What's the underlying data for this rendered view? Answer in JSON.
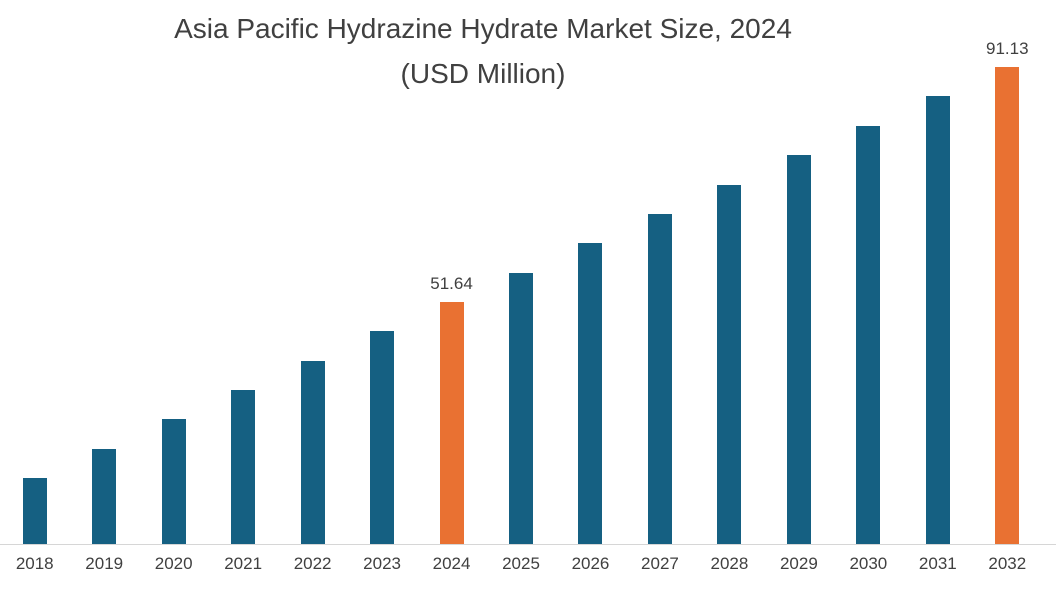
{
  "title": {
    "line1": "Asia Pacific Hydrazine Hydrate Market Size, 2024",
    "line2": "(USD Million)"
  },
  "chart_data": {
    "type": "bar",
    "title": "Asia Pacific Hydrazine Hydrate Market Size, 2024 (USD Million)",
    "xlabel": "",
    "ylabel": "",
    "categories": [
      "2018",
      "2019",
      "2020",
      "2021",
      "2022",
      "2023",
      "2024",
      "2025",
      "2026",
      "2027",
      "2028",
      "2029",
      "2030",
      "2031",
      "2032"
    ],
    "values": [
      22.0,
      26.95,
      31.9,
      36.85,
      41.8,
      46.7,
      51.64,
      56.58,
      61.52,
      66.45,
      71.38,
      76.32,
      81.26,
      86.19,
      91.13
    ],
    "data_labels": [
      "",
      "",
      "",
      "",
      "",
      "",
      "51.64",
      "",
      "",
      "",
      "",
      "",
      "",
      "",
      "91.13"
    ],
    "highlight_indices": [
      6,
      14
    ],
    "colors": {
      "bar": "#156082",
      "highlight": "#E97132",
      "title_text": "#404040",
      "tick_text": "#404040",
      "axis_line": "#d6d6d6"
    },
    "ylim": [
      10.8,
      102.4
    ],
    "grid": false,
    "legend": "none"
  }
}
